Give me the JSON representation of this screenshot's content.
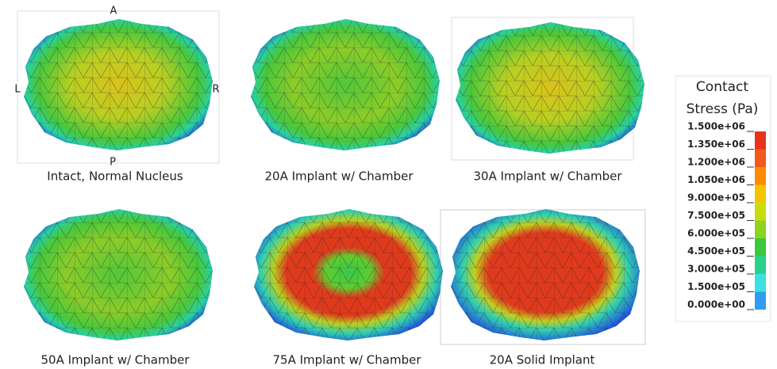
{
  "orientation": {
    "anterior": "A",
    "left": "L",
    "right": "R",
    "posterior": "P"
  },
  "panels": [
    {
      "caption": "Intact, Normal Nucleus"
    },
    {
      "caption": "20A Implant w/ Chamber"
    },
    {
      "caption": "30A Implant w/ Chamber"
    },
    {
      "caption": "50A Implant w/ Chamber"
    },
    {
      "caption": "75A Implant w/ Chamber"
    },
    {
      "caption": "20A Solid Implant"
    }
  ],
  "legend": {
    "title": [
      "Contact",
      "Stress (Pa)"
    ],
    "labels": [
      "1.500e+06",
      "1.350e+06",
      "1.200e+06",
      "1.050e+06",
      "9.000e+05",
      "7.500e+05",
      "6.000e+05",
      "4.500e+05",
      "3.000e+05",
      "1.500e+05",
      "0.000e+00"
    ]
  }
}
